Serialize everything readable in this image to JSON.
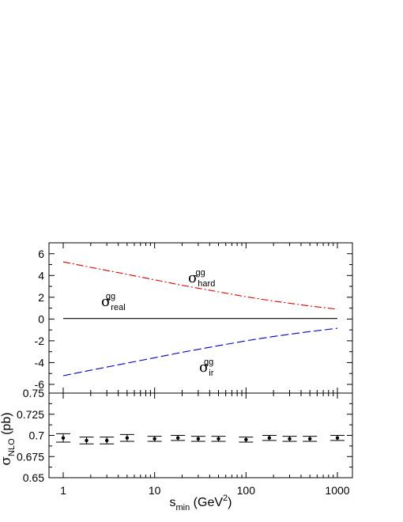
{
  "chart_data": [
    {
      "type": "line",
      "panel": "upper",
      "x_scale": "log",
      "xlim": [
        1,
        1000
      ],
      "ylim": [
        -6.8,
        7.0
      ],
      "y_ticks": [
        "-6",
        "-4",
        "-2",
        "0",
        "2",
        "4",
        "6"
      ],
      "y_tick_values": [
        -6,
        -4,
        -2,
        0,
        2,
        4,
        6
      ],
      "series": [
        {
          "name": "σ hard gg",
          "label": {
            "symbol": "σ",
            "sub": "hard",
            "sup": "gg"
          },
          "color": "#dd0000",
          "style": "dash-dot",
          "x": [
            1,
            2,
            5,
            10,
            20,
            50,
            100,
            200,
            500,
            1000
          ],
          "y": [
            5.25,
            4.75,
            4.1,
            3.6,
            3.1,
            2.5,
            2.05,
            1.65,
            1.2,
            0.9
          ]
        },
        {
          "name": "σ real gg",
          "label": {
            "symbol": "σ",
            "sub": "real",
            "sup": "gg"
          },
          "color": "#000000",
          "style": "solid",
          "x": [
            1,
            1000
          ],
          "y": [
            0.05,
            0.05
          ]
        },
        {
          "name": "σ ir gg",
          "label": {
            "symbol": "σ",
            "sub": "ir",
            "sup": "gg"
          },
          "color": "#0000cc",
          "style": "dashed",
          "x": [
            1,
            2,
            5,
            10,
            20,
            50,
            100,
            200,
            500,
            1000
          ],
          "y": [
            -5.2,
            -4.7,
            -4.05,
            -3.55,
            -3.05,
            -2.45,
            -2.0,
            -1.6,
            -1.15,
            -0.85
          ]
        }
      ]
    },
    {
      "type": "scatter",
      "panel": "lower",
      "x_scale": "log",
      "xlim": [
        1,
        1000
      ],
      "ylim": [
        0.65,
        0.75
      ],
      "ylabel": {
        "symbol": "σ",
        "sub": "NLO",
        "unit": "(pb)"
      },
      "xlabel": {
        "base": "s",
        "sub": "min",
        "unit_pre": "(GeV",
        "unit_sup": "2",
        "unit_post": ")"
      },
      "y_ticks": [
        "0.65",
        "0.675",
        "0.7",
        "0.725",
        "0.75"
      ],
      "y_tick_values": [
        0.65,
        0.675,
        0.7,
        0.725,
        0.75
      ],
      "x_ticks": [
        "1",
        "10",
        "100",
        "1000"
      ],
      "x_tick_values": [
        1,
        10,
        100,
        1000
      ],
      "points": [
        {
          "x": 1.0,
          "y": 0.697,
          "err": 0.005
        },
        {
          "x": 1.8,
          "y": 0.694,
          "err": 0.004
        },
        {
          "x": 3.0,
          "y": 0.694,
          "err": 0.004
        },
        {
          "x": 5.0,
          "y": 0.697,
          "err": 0.004
        },
        {
          "x": 10.0,
          "y": 0.696,
          "err": 0.003
        },
        {
          "x": 18.0,
          "y": 0.697,
          "err": 0.003
        },
        {
          "x": 30.0,
          "y": 0.696,
          "err": 0.003
        },
        {
          "x": 50.0,
          "y": 0.696,
          "err": 0.003
        },
        {
          "x": 100.0,
          "y": 0.695,
          "err": 0.003
        },
        {
          "x": 180.0,
          "y": 0.697,
          "err": 0.003
        },
        {
          "x": 300.0,
          "y": 0.696,
          "err": 0.003
        },
        {
          "x": 500.0,
          "y": 0.696,
          "err": 0.003
        },
        {
          "x": 1000.0,
          "y": 0.697,
          "err": 0.003
        }
      ]
    }
  ]
}
